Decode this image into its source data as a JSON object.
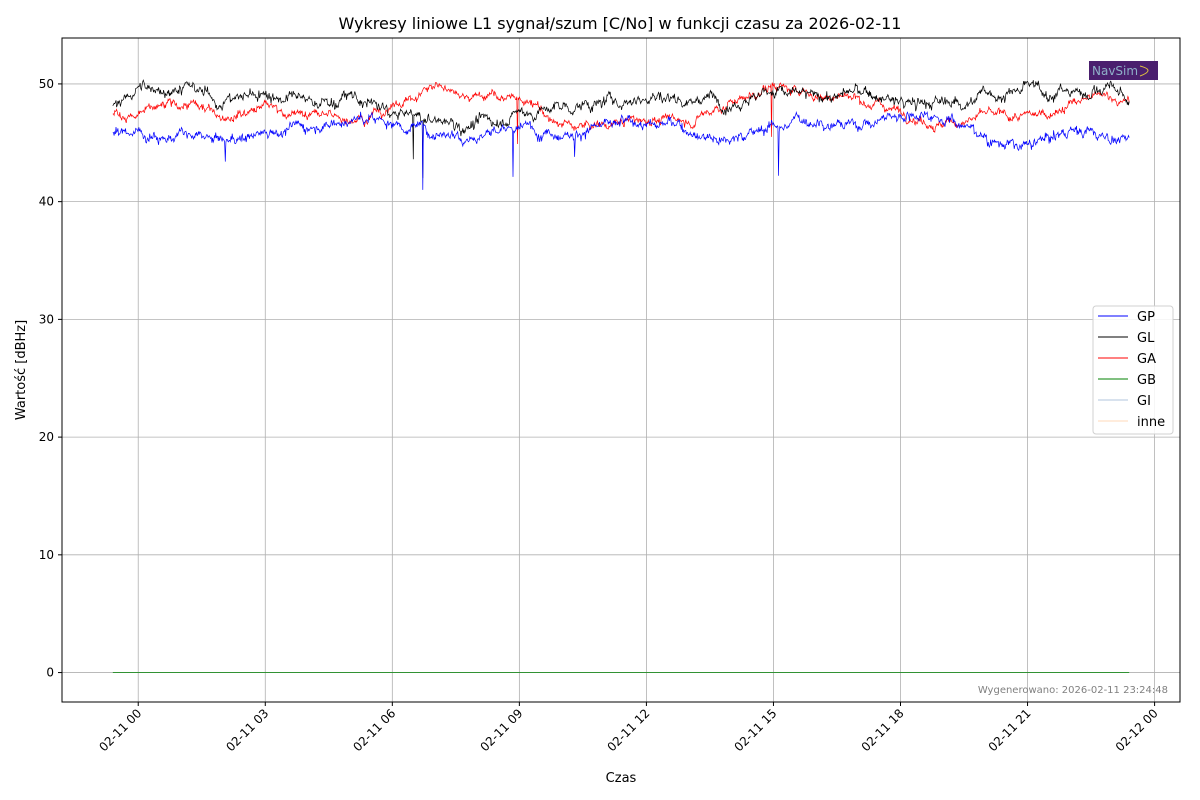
{
  "chart_data": {
    "type": "line",
    "title": "Wykresy liniowe L1 sygnał/szum [C/No] w funkcji czasu za 2026-02-11",
    "xlabel": "Czas",
    "ylabel": "Wartość [dBHz]",
    "x_units": "hours relative to 2026-02-11 00:00",
    "xlim": [
      -1.8,
      24.6
    ],
    "ylim": [
      -2.5,
      53.9
    ],
    "grid": true,
    "legend_placement": "center-right",
    "x_ticks": [
      {
        "value": 0,
        "label": "02-11 00"
      },
      {
        "value": 3,
        "label": "02-11 03"
      },
      {
        "value": 6,
        "label": "02-11 06"
      },
      {
        "value": 9,
        "label": "02-11 09"
      },
      {
        "value": 12,
        "label": "02-11 12"
      },
      {
        "value": 15,
        "label": "02-11 15"
      },
      {
        "value": 18,
        "label": "02-11 18"
      },
      {
        "value": 21,
        "label": "02-11 21"
      },
      {
        "value": 24,
        "label": "02-12 00"
      }
    ],
    "y_ticks": [
      {
        "value": 0,
        "label": "0"
      },
      {
        "value": 10,
        "label": "10"
      },
      {
        "value": 20,
        "label": "20"
      },
      {
        "value": 30,
        "label": "30"
      },
      {
        "value": 40,
        "label": "40"
      },
      {
        "value": 50,
        "label": "50"
      }
    ],
    "x": [
      -0.6,
      0,
      1,
      2,
      3,
      4,
      5,
      6,
      7,
      8,
      9,
      10,
      11,
      12,
      13,
      14,
      15,
      16,
      17,
      18,
      19,
      20,
      21,
      22,
      23,
      23.4
    ],
    "series": [
      {
        "name": "GP",
        "color": "#0000ff",
        "noise": 0.55,
        "values": [
          45.8,
          46,
          45.5,
          45,
          46,
          46.5,
          47,
          46.8,
          46,
          45.8,
          46.2,
          46,
          46.3,
          46.8,
          46.2,
          45.3,
          46.5,
          47,
          46.5,
          47.5,
          47.5,
          45.5,
          44.5,
          46.2,
          45.5,
          45.3
        ],
        "spikes": [
          [
            2.05,
            43.4
          ],
          [
            6.72,
            41.0
          ],
          [
            8.85,
            42.1
          ],
          [
            15.12,
            42.2
          ],
          [
            10.3,
            43.8
          ]
        ]
      },
      {
        "name": "GL",
        "color": "#000000",
        "noise": 0.6,
        "values": [
          48.2,
          49.5,
          49.8,
          48.5,
          49.3,
          48.3,
          48.8,
          47.5,
          46.8,
          46.5,
          47.5,
          48,
          48.3,
          49,
          48.8,
          48.7,
          49.5,
          48.8,
          49.3,
          48.3,
          48.3,
          49,
          49.5,
          49.3,
          49.8,
          48.3
        ],
        "spikes": [
          [
            6.5,
            43.6
          ],
          [
            6.72,
            42.0
          ]
        ]
      },
      {
        "name": "GA",
        "color": "#ff0000",
        "noise": 0.45,
        "values": [
          47.5,
          47.3,
          48.2,
          47.5,
          48.2,
          47.3,
          47.2,
          48,
          49.8,
          49.2,
          48.7,
          46.5,
          46.5,
          47,
          46.8,
          48.5,
          49.8,
          49,
          48.8,
          47.8,
          46.5,
          47.3,
          47,
          48.3,
          49,
          48.3
        ],
        "spikes": [
          [
            8.95,
            44.9
          ],
          [
            14.95,
            45.5
          ]
        ]
      },
      {
        "name": "GB",
        "color": "#008000",
        "noise": 0,
        "values": [
          0,
          0,
          0,
          0,
          0,
          0,
          0,
          0,
          0,
          0,
          0,
          0,
          0,
          0,
          0,
          0,
          0,
          0,
          0,
          0,
          0,
          0,
          0,
          0,
          0,
          0
        ],
        "spikes": []
      },
      {
        "name": "GI",
        "color": "#b0c4de",
        "noise": 0,
        "values": [
          0,
          0,
          0,
          0,
          0,
          0,
          0,
          0,
          0,
          0,
          0,
          0,
          0,
          0,
          0,
          0,
          0,
          0,
          0,
          0,
          0,
          0,
          0,
          0,
          0,
          0
        ],
        "spikes": []
      },
      {
        "name": "inne",
        "color": "#ffdab9",
        "noise": 0,
        "values": [
          0,
          0,
          0,
          0,
          0,
          0,
          0,
          0,
          0,
          0,
          0,
          0,
          0,
          0,
          0,
          0,
          0,
          0,
          0,
          0,
          0,
          0,
          0,
          0,
          0,
          0
        ],
        "spikes": []
      }
    ],
    "annotations": {
      "generated": "Wygenerowano: 2026-02-11 23:24:48",
      "logo": "NavSim"
    }
  }
}
